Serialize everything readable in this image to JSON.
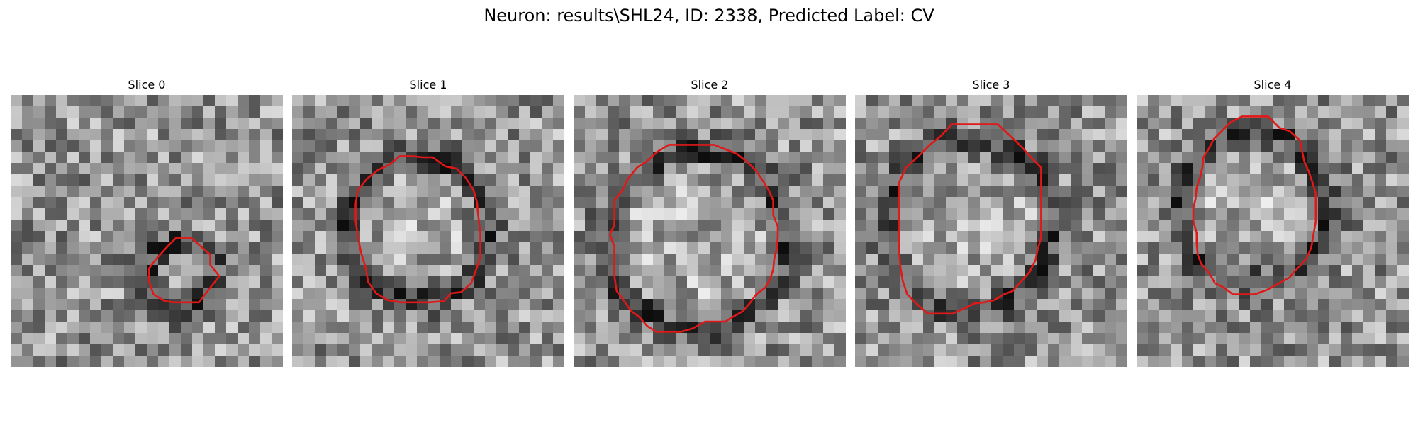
{
  "figure": {
    "title": "Neuron: results\\SHL24, ID: 2338, Predicted Label: CV",
    "outline_color": "#e01818"
  },
  "panels": [
    {
      "label": "Slice 0",
      "outline": [
        [
          14.6,
          12.6
        ],
        [
          15.9,
          12.6
        ],
        [
          17.6,
          14.1
        ],
        [
          17.6,
          15.0
        ],
        [
          18.4,
          16.0
        ],
        [
          17.6,
          17.0
        ],
        [
          16.6,
          18.3
        ],
        [
          15.4,
          18.3
        ],
        [
          14.4,
          18.3
        ],
        [
          13.6,
          18.2
        ],
        [
          12.6,
          17.6
        ],
        [
          12.2,
          16.5
        ],
        [
          12.2,
          15.3
        ],
        [
          12.9,
          14.4
        ],
        [
          13.9,
          13.3
        ]
      ]
    },
    {
      "label": "Slice 1",
      "outline": [
        [
          11.5,
          5.5
        ],
        [
          12.4,
          5.5
        ],
        [
          13.5,
          6.3
        ],
        [
          14.5,
          6.5
        ],
        [
          15.3,
          7.3
        ],
        [
          16.0,
          8.4
        ],
        [
          16.3,
          9.5
        ],
        [
          16.4,
          10.6
        ],
        [
          16.6,
          12.2
        ],
        [
          16.6,
          14.3
        ],
        [
          16.2,
          15.5
        ],
        [
          15.8,
          16.6
        ],
        [
          14.9,
          17.4
        ],
        [
          14.0,
          17.5
        ],
        [
          13.4,
          18.2
        ],
        [
          12.1,
          18.3
        ],
        [
          10.9,
          18.3
        ],
        [
          9.6,
          18.3
        ],
        [
          8.4,
          18.1
        ],
        [
          7.4,
          17.5
        ],
        [
          6.7,
          16.5
        ],
        [
          6.5,
          15.3
        ],
        [
          6.1,
          14.0
        ],
        [
          5.8,
          12.6
        ],
        [
          5.6,
          11.1
        ],
        [
          5.6,
          9.6
        ],
        [
          5.8,
          8.4
        ],
        [
          6.6,
          7.4
        ],
        [
          7.6,
          6.6
        ],
        [
          8.5,
          6.2
        ],
        [
          9.5,
          5.4
        ],
        [
          10.6,
          5.4
        ]
      ]
    },
    {
      "label": "Slice 2",
      "outline": [
        [
          13.4,
          4.8
        ],
        [
          14.4,
          5.2
        ],
        [
          15.3,
          5.9
        ],
        [
          16.1,
          6.7
        ],
        [
          16.7,
          7.6
        ],
        [
          17.2,
          8.4
        ],
        [
          17.6,
          9.3
        ],
        [
          17.6,
          10.6
        ],
        [
          18.0,
          11.6
        ],
        [
          18.0,
          12.6
        ],
        [
          17.9,
          13.6
        ],
        [
          17.7,
          14.4
        ],
        [
          17.6,
          15.4
        ],
        [
          17.3,
          16.3
        ],
        [
          16.9,
          17.0
        ],
        [
          16.1,
          17.6
        ],
        [
          15.6,
          18.3
        ],
        [
          14.9,
          19.1
        ],
        [
          14.0,
          19.6
        ],
        [
          13.4,
          20.0
        ],
        [
          12.4,
          20.0
        ],
        [
          11.6,
          20.0
        ],
        [
          10.5,
          20.6
        ],
        [
          9.5,
          20.9
        ],
        [
          8.4,
          20.9
        ],
        [
          7.3,
          20.9
        ],
        [
          6.5,
          20.4
        ],
        [
          5.8,
          19.6
        ],
        [
          5.1,
          19.1
        ],
        [
          4.4,
          18.1
        ],
        [
          3.8,
          17.3
        ],
        [
          3.6,
          16.0
        ],
        [
          3.6,
          14.7
        ],
        [
          3.6,
          13.4
        ],
        [
          3.2,
          12.3
        ],
        [
          3.6,
          11.5
        ],
        [
          3.6,
          10.4
        ],
        [
          3.6,
          9.3
        ],
        [
          4.3,
          8.4
        ],
        [
          4.8,
          7.4
        ],
        [
          5.6,
          6.4
        ],
        [
          6.4,
          5.9
        ],
        [
          7.4,
          5.0
        ],
        [
          8.4,
          4.4
        ],
        [
          9.5,
          4.4
        ],
        [
          10.6,
          4.4
        ],
        [
          11.6,
          4.4
        ],
        [
          12.4,
          4.4
        ]
      ]
    },
    {
      "label": "Slice 3",
      "outline": [
        [
          10.4,
          2.6
        ],
        [
          11.5,
          2.6
        ],
        [
          12.6,
          2.6
        ],
        [
          14.7,
          4.6
        ],
        [
          15.6,
          5.6
        ],
        [
          16.4,
          6.4
        ],
        [
          16.4,
          7.7
        ],
        [
          16.4,
          9.3
        ],
        [
          16.4,
          10.5
        ],
        [
          16.4,
          11.6
        ],
        [
          16.4,
          12.6
        ],
        [
          16.1,
          13.6
        ],
        [
          15.9,
          14.6
        ],
        [
          15.4,
          15.6
        ],
        [
          14.7,
          16.4
        ],
        [
          13.9,
          17.3
        ],
        [
          13.1,
          17.6
        ],
        [
          12.3,
          18.1
        ],
        [
          11.4,
          18.3
        ],
        [
          10.5,
          18.4
        ],
        [
          9.5,
          18.9
        ],
        [
          8.6,
          19.3
        ],
        [
          7.4,
          19.3
        ],
        [
          6.4,
          19.3
        ],
        [
          5.4,
          18.4
        ],
        [
          4.6,
          17.6
        ],
        [
          4.2,
          16.4
        ],
        [
          4.0,
          15.2
        ],
        [
          3.9,
          13.9
        ],
        [
          3.9,
          12.6
        ],
        [
          3.9,
          11.4
        ],
        [
          3.9,
          10.2
        ],
        [
          3.9,
          9.0
        ],
        [
          3.9,
          7.7
        ],
        [
          4.5,
          6.4
        ],
        [
          5.6,
          5.4
        ],
        [
          6.6,
          4.4
        ],
        [
          7.6,
          3.6
        ],
        [
          8.5,
          2.6
        ],
        [
          9.5,
          2.6
        ]
      ]
    },
    {
      "label": "Slice 4",
      "outline": [
        [
          10.4,
          1.9
        ],
        [
          11.6,
          1.9
        ],
        [
          12.6,
          2.9
        ],
        [
          13.5,
          3.2
        ],
        [
          14.4,
          4.0
        ],
        [
          14.6,
          5.0
        ],
        [
          14.8,
          5.9
        ],
        [
          15.2,
          6.8
        ],
        [
          15.5,
          7.7
        ],
        [
          15.8,
          8.7
        ],
        [
          15.8,
          10.0
        ],
        [
          15.8,
          11.2
        ],
        [
          15.6,
          12.3
        ],
        [
          15.4,
          13.5
        ],
        [
          15.0,
          14.4
        ],
        [
          14.4,
          15.1
        ],
        [
          13.9,
          15.6
        ],
        [
          13.5,
          16.1
        ],
        [
          12.6,
          16.6
        ],
        [
          11.5,
          17.2
        ],
        [
          10.4,
          17.6
        ],
        [
          9.6,
          17.6
        ],
        [
          8.5,
          17.6
        ],
        [
          7.7,
          17.0
        ],
        [
          6.9,
          16.6
        ],
        [
          6.4,
          15.7
        ],
        [
          5.7,
          14.9
        ],
        [
          5.4,
          14.1
        ],
        [
          5.3,
          13.1
        ],
        [
          5.3,
          12.2
        ],
        [
          5.0,
          11.1
        ],
        [
          5.0,
          10.0
        ],
        [
          5.2,
          9.2
        ],
        [
          5.3,
          8.2
        ],
        [
          5.6,
          7.3
        ],
        [
          5.8,
          6.4
        ],
        [
          5.9,
          5.5
        ],
        [
          6.4,
          4.7
        ],
        [
          6.8,
          3.9
        ],
        [
          7.6,
          3.1
        ],
        [
          8.3,
          2.4
        ],
        [
          9.3,
          1.9
        ]
      ]
    }
  ]
}
